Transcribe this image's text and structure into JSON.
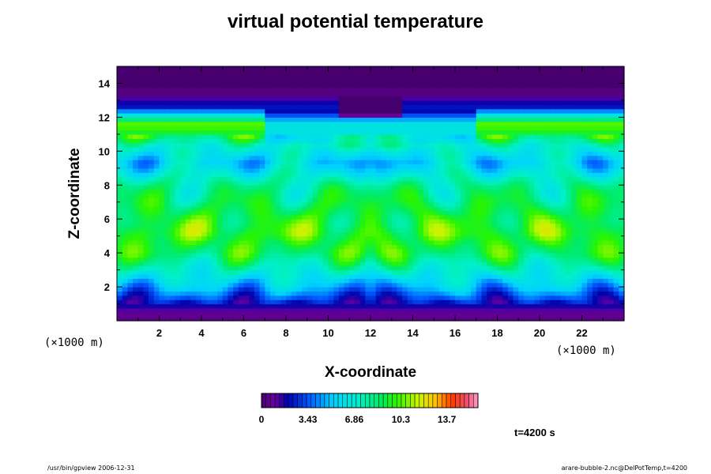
{
  "chart_data": {
    "type": "heatmap",
    "title": "virtual potential temperature",
    "xlabel": "X-coordinate",
    "ylabel": "Z-coordinate",
    "x_scale_label": "(×1000 m)",
    "y_scale_label": "(×1000 m)",
    "xlim": [
      0,
      24
    ],
    "ylim": [
      0,
      15
    ],
    "x_ticks": [
      2,
      4,
      6,
      8,
      10,
      12,
      14,
      16,
      18,
      20,
      22
    ],
    "y_ticks": [
      2,
      4,
      6,
      8,
      10,
      12,
      14
    ],
    "colorbar": {
      "range": [
        0,
        16
      ],
      "tick_values": [
        0,
        3.43,
        6.86,
        10.3,
        13.7
      ],
      "tick_labels": [
        "0",
        "3.43",
        "6.86",
        "10.3",
        "13.7"
      ],
      "colormap": "rainbow: purple-blue-cyan-green-yellow-red-pink"
    },
    "field_features": [
      {
        "z": 0.3,
        "value": 0.5
      },
      {
        "z": 1.0,
        "value": 2.0
      },
      {
        "z": 2.0,
        "value": 5.0
      },
      {
        "z": 4.0,
        "value": 9.0
      },
      {
        "z": 5.2,
        "value": 10.0
      },
      {
        "z": 8.0,
        "value": 8.0
      },
      {
        "z": 9.3,
        "value": 5.5
      },
      {
        "z": 11.6,
        "value": 9.0
      },
      {
        "z": 12.5,
        "value": 2.5
      },
      {
        "z": 13.8,
        "value": 0.0
      }
    ]
  },
  "footer": {
    "left": "/usr/bin/gpview 2006-12-31",
    "right": "arare-bubble-2.nc@DelPotTemp,t=4200"
  },
  "time_label": "t=4200 s"
}
